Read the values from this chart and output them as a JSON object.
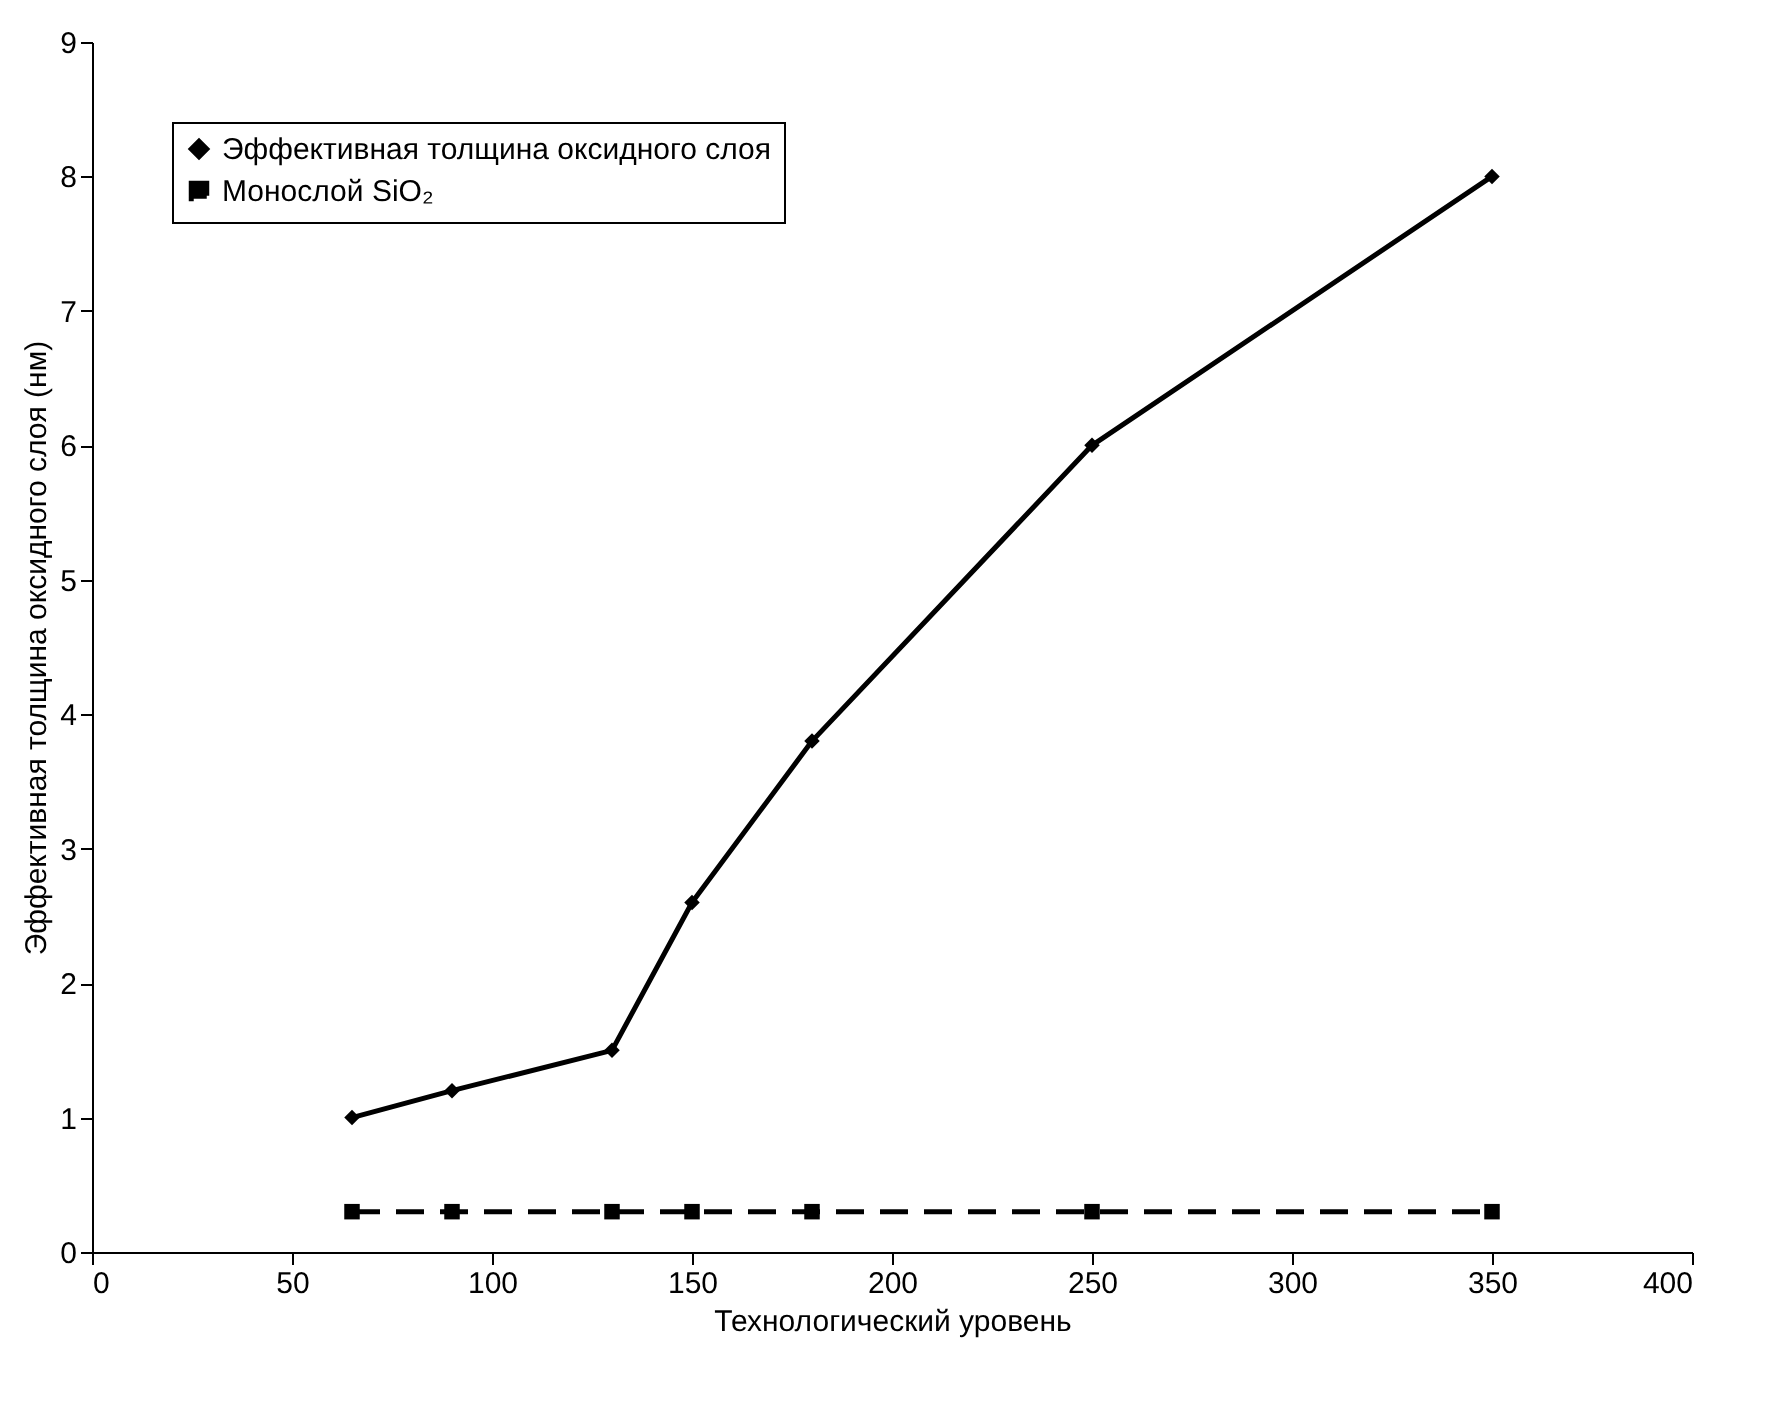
{
  "chart_data": {
    "type": "line",
    "xlabel": "Технологический уровень",
    "ylabel": "Эффективная толщина оксидного слоя (нм)",
    "x": [
      65,
      90,
      130,
      150,
      180,
      250,
      350
    ],
    "series": [
      {
        "name": "Эффективная толщина оксидного слоя",
        "color": "#000000",
        "values": [
          1,
          1.2,
          1.5,
          2.6,
          3.8,
          6,
          8
        ],
        "marker": "diamond",
        "line_style": "solid"
      },
      {
        "name": "Монослой SiO₂",
        "color": "#000000",
        "values": [
          0.3,
          0.3,
          0.3,
          0.3,
          0.3,
          0.3,
          0.3
        ],
        "marker": "square",
        "line_style": "dashed"
      }
    ],
    "xlim": [
      0,
      400
    ],
    "xticks": [
      0,
      50,
      100,
      150,
      200,
      250,
      300,
      350,
      400
    ],
    "ylim": [
      0,
      9
    ],
    "yticks": [
      0,
      1,
      2,
      3,
      4,
      5,
      6,
      7,
      8,
      9
    ],
    "grid": false,
    "legend": "top left"
  }
}
